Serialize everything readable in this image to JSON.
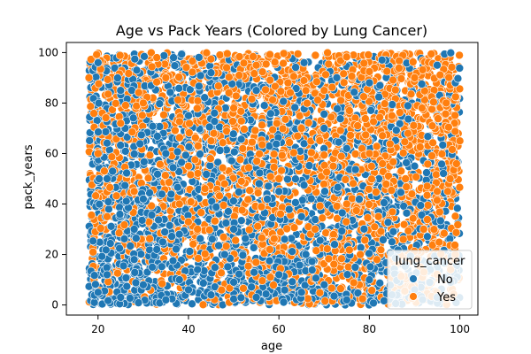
{
  "chart_data": {
    "type": "scatter",
    "title": "Age vs Pack Years (Colored by Lung Cancer)",
    "xlabel": "age",
    "ylabel": "pack_years",
    "xlim": [
      13,
      104
    ],
    "ylim": [
      -4,
      104
    ],
    "xticks": [
      20,
      40,
      60,
      80,
      100
    ],
    "yticks": [
      0,
      20,
      40,
      60,
      80,
      100
    ],
    "x_range": [
      18,
      100
    ],
    "y_range": [
      0,
      100
    ],
    "grid": false,
    "legend": {
      "title": "lung_cancer",
      "placement": "bottom-right"
    },
    "series": [
      {
        "name": "No",
        "color": "#1f77b4",
        "density_note_points": [
          [
            20,
            5
          ],
          [
            22,
            12
          ],
          [
            25,
            3
          ],
          [
            28,
            18
          ],
          [
            30,
            8
          ],
          [
            32,
            15
          ],
          [
            35,
            2
          ],
          [
            38,
            10
          ],
          [
            40,
            6
          ],
          [
            42,
            14
          ],
          [
            45,
            4
          ],
          [
            48,
            20
          ],
          [
            50,
            9
          ],
          [
            55,
            3
          ],
          [
            60,
            12
          ],
          [
            65,
            5
          ],
          [
            70,
            8
          ],
          [
            75,
            2
          ],
          [
            80,
            10
          ],
          [
            85,
            4
          ],
          [
            90,
            6
          ],
          [
            95,
            3
          ],
          [
            98,
            9
          ],
          [
            22,
            50
          ],
          [
            30,
            42
          ],
          [
            35,
            60
          ],
          [
            40,
            75
          ],
          [
            25,
            85
          ],
          [
            45,
            92
          ],
          [
            20,
            96
          ],
          [
            50,
            30
          ],
          [
            60,
            45
          ],
          [
            70,
            70
          ],
          [
            80,
            88
          ],
          [
            90,
            55
          ],
          [
            95,
            95
          ],
          [
            85,
            25
          ],
          [
            55,
            85
          ],
          [
            65,
            35
          ],
          [
            75,
            62
          ],
          [
            28,
            30
          ],
          [
            33,
            22
          ],
          [
            38,
            28
          ],
          [
            26,
            70
          ]
        ]
      },
      {
        "name": "Yes",
        "color": "#ff7f0e",
        "density_note_points": [
          [
            20,
            60
          ],
          [
            25,
            72
          ],
          [
            30,
            80
          ],
          [
            35,
            90
          ],
          [
            40,
            55
          ],
          [
            45,
            65
          ],
          [
            50,
            78
          ],
          [
            55,
            95
          ],
          [
            60,
            50
          ],
          [
            65,
            70
          ],
          [
            70,
            85
          ],
          [
            75,
            40
          ],
          [
            80,
            60
          ],
          [
            85,
            75
          ],
          [
            90,
            90
          ],
          [
            95,
            45
          ],
          [
            100,
            65
          ],
          [
            22,
            35
          ],
          [
            28,
            45
          ],
          [
            33,
            98
          ],
          [
            38,
            40
          ],
          [
            42,
            30
          ],
          [
            48,
            48
          ],
          [
            52,
            62
          ],
          [
            58,
            22
          ],
          [
            62,
            88
          ],
          [
            68,
            30
          ],
          [
            72,
            55
          ],
          [
            78,
            20
          ],
          [
            82,
            35
          ],
          [
            88,
            50
          ],
          [
            92,
            30
          ],
          [
            97,
            80
          ],
          [
            99,
            20
          ],
          [
            18,
            90
          ]
        ]
      }
    ]
  }
}
